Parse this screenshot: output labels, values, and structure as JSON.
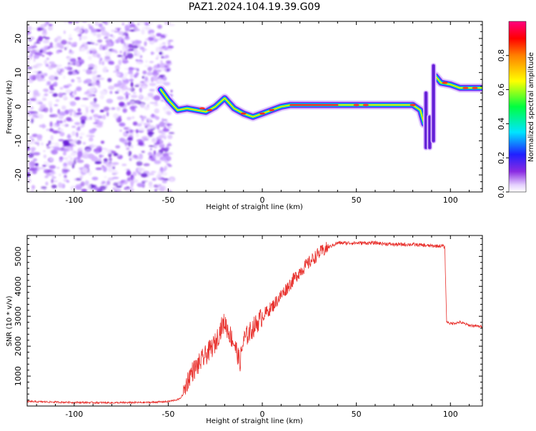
{
  "chart_data": [
    {
      "type": "heatmap",
      "title": "PAZ1.2024.104.19.39.G09",
      "xlabel": "Height of straight line (km)",
      "ylabel": "Frequency (Hz)",
      "xlim": [
        -125,
        117
      ],
      "ylim": [
        -25,
        25
      ],
      "xticks": [
        -100,
        -50,
        0,
        50,
        100
      ],
      "yticks": [
        -20,
        -10,
        0,
        10,
        20
      ],
      "noise_region": [
        -125,
        -48
      ],
      "track": [
        {
          "x": -54,
          "y": 5
        },
        {
          "x": -50,
          "y": 2
        },
        {
          "x": -45,
          "y": -1
        },
        {
          "x": -40,
          "y": -0.5
        },
        {
          "x": -35,
          "y": -1
        },
        {
          "x": -30,
          "y": -1.5
        },
        {
          "x": -25,
          "y": 0
        },
        {
          "x": -20,
          "y": 2.5
        },
        {
          "x": -15,
          "y": -0.5
        },
        {
          "x": -10,
          "y": -2
        },
        {
          "x": -5,
          "y": -3
        },
        {
          "x": 0,
          "y": -2
        },
        {
          "x": 5,
          "y": -1
        },
        {
          "x": 10,
          "y": 0
        },
        {
          "x": 15,
          "y": 0.5
        },
        {
          "x": 40,
          "y": 0.5
        },
        {
          "x": 60,
          "y": 0.5
        },
        {
          "x": 70,
          "y": 0.5
        },
        {
          "x": 80,
          "y": 0.5
        },
        {
          "x": 84,
          "y": -1
        },
        {
          "x": 86,
          "y": -5
        }
      ],
      "track2": [
        {
          "x": 92,
          "y": 9
        },
        {
          "x": 95,
          "y": 7
        },
        {
          "x": 100,
          "y": 6.5
        },
        {
          "x": 105,
          "y": 5.5
        },
        {
          "x": 110,
          "y": 5.5
        },
        {
          "x": 117,
          "y": 5.5
        }
      ],
      "verticals": [
        {
          "x": 87,
          "y0": -12,
          "y1": 4
        },
        {
          "x": 89,
          "y0": -12,
          "y1": -3
        },
        {
          "x": 91,
          "y0": -10,
          "y1": 12
        }
      ],
      "colorbar": {
        "label": "Normalized spectral amplitude",
        "range": [
          0,
          1
        ],
        "ticks": [
          0.0,
          0.2,
          0.4,
          0.6,
          0.8
        ],
        "tick_labels": [
          "0.0",
          "0.2",
          "0.4",
          "0.6",
          "0.8"
        ]
      }
    },
    {
      "type": "line",
      "xlabel": "Height of straight line (km)",
      "ylabel": "SNR (10 * v/v)",
      "xlim": [
        -125,
        117
      ],
      "ylim": [
        0,
        5700
      ],
      "xticks": [
        -100,
        -50,
        0,
        50,
        100
      ],
      "yticks": [
        1000,
        2000,
        3000,
        4000,
        5000
      ],
      "color": "#e8302c",
      "x": [
        -125,
        -100,
        -80,
        -60,
        -50,
        -44,
        -42,
        -40,
        -38,
        -35,
        -30,
        -25,
        -22,
        -20,
        -18,
        -15,
        -13,
        -12,
        -10,
        -5,
        0,
        5,
        10,
        15,
        20,
        25,
        30,
        35,
        40,
        50,
        60,
        70,
        80,
        90,
        96,
        97,
        98,
        99,
        100,
        105,
        110,
        117
      ],
      "values": [
        150,
        120,
        110,
        120,
        150,
        230,
        400,
        800,
        1100,
        1300,
        1700,
        2100,
        2600,
        2800,
        2500,
        2100,
        1700,
        1400,
        2200,
        2600,
        3000,
        3300,
        3700,
        4100,
        4500,
        4800,
        5100,
        5300,
        5450,
        5450,
        5450,
        5400,
        5400,
        5350,
        5350,
        5300,
        2800,
        2800,
        2750,
        2800,
        2700,
        2650
      ]
    }
  ]
}
